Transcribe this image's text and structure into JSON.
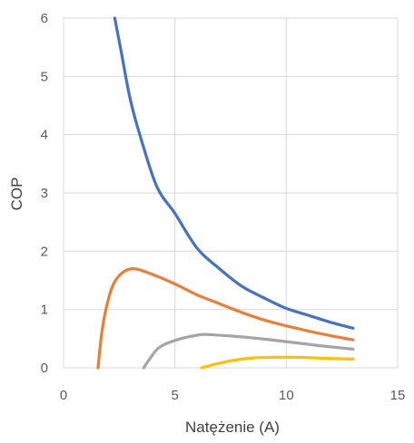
{
  "chart_data": {
    "type": "line",
    "title": "",
    "xlabel": "Natężenie (A)",
    "ylabel": "COP",
    "xlim": [
      0,
      15
    ],
    "ylim": [
      0,
      6
    ],
    "x_ticks": [
      "0",
      "5",
      "10",
      "15"
    ],
    "y_ticks": [
      "0",
      "1",
      "2",
      "3",
      "4",
      "5",
      "6"
    ],
    "grid": "on",
    "legend": "none",
    "series": [
      {
        "color": "#4472c4",
        "points": [
          [
            2.3,
            6.0
          ],
          [
            2.6,
            5.4
          ],
          [
            3.0,
            4.6
          ],
          [
            3.5,
            3.9
          ],
          [
            4.2,
            3.1
          ],
          [
            5.0,
            2.65
          ],
          [
            6.0,
            2.05
          ],
          [
            7.0,
            1.7
          ],
          [
            8.0,
            1.4
          ],
          [
            9.0,
            1.2
          ],
          [
            10.0,
            1.02
          ],
          [
            11.0,
            0.9
          ],
          [
            12.0,
            0.78
          ],
          [
            13.0,
            0.68
          ]
        ]
      },
      {
        "color": "#ed7d31",
        "points": [
          [
            1.55,
            0.0
          ],
          [
            1.7,
            0.55
          ],
          [
            1.9,
            1.0
          ],
          [
            2.2,
            1.4
          ],
          [
            2.6,
            1.62
          ],
          [
            3.1,
            1.7
          ],
          [
            3.8,
            1.63
          ],
          [
            5.0,
            1.44
          ],
          [
            6.0,
            1.25
          ],
          [
            7.0,
            1.1
          ],
          [
            8.0,
            0.95
          ],
          [
            9.0,
            0.82
          ],
          [
            10.0,
            0.72
          ],
          [
            11.0,
            0.63
          ],
          [
            12.0,
            0.55
          ],
          [
            13.0,
            0.48
          ]
        ]
      },
      {
        "color": "#a5a5a5",
        "points": [
          [
            3.6,
            0.0
          ],
          [
            3.9,
            0.17
          ],
          [
            4.3,
            0.35
          ],
          [
            5.0,
            0.47
          ],
          [
            6.0,
            0.56
          ],
          [
            6.5,
            0.57
          ],
          [
            8.0,
            0.53
          ],
          [
            10.0,
            0.45
          ],
          [
            11.5,
            0.38
          ],
          [
            13.0,
            0.32
          ]
        ]
      },
      {
        "color": "#ffc000",
        "points": [
          [
            6.2,
            0.0
          ],
          [
            6.8,
            0.06
          ],
          [
            7.5,
            0.12
          ],
          [
            8.5,
            0.17
          ],
          [
            9.5,
            0.18
          ],
          [
            10.5,
            0.18
          ],
          [
            12.0,
            0.16
          ],
          [
            13.0,
            0.15
          ]
        ]
      }
    ]
  }
}
